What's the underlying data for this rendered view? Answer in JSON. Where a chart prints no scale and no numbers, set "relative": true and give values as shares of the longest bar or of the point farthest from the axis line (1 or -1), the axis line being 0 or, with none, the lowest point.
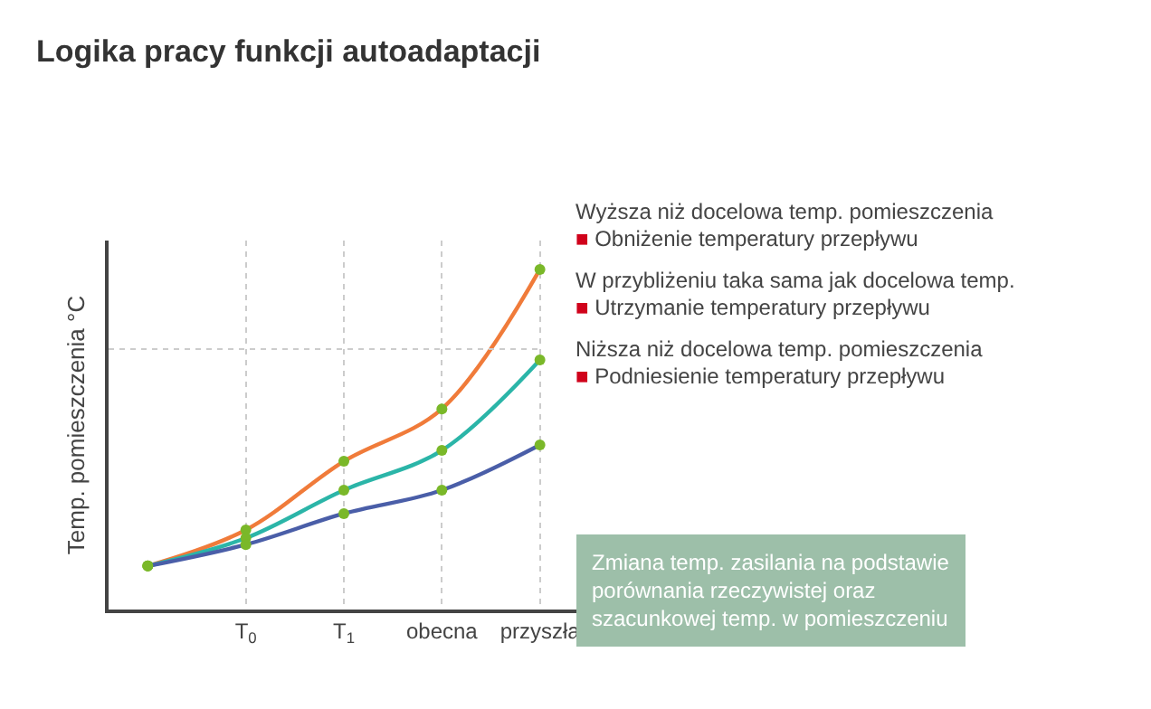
{
  "chart_data": {
    "type": "line",
    "title": "Logika pracy funkcji autoadaptacji",
    "ylabel": "Temp. pomieszczenia °C",
    "relative": true,
    "categories": [
      null,
      "T$_{0}$",
      "T$_{1}$",
      "obecna",
      "przyszła"
    ],
    "series": [
      {
        "color": "#f07b3a",
        "values": [
          0.128,
          0.234,
          0.436,
          0.59,
          1
        ]
      },
      {
        "color": "#2bb5a8",
        "values": [
          0.128,
          0.21,
          0.351,
          0.468,
          0.734
        ]
      },
      {
        "color": "#4a5ea8",
        "values": [
          0.128,
          0.191,
          0.282,
          0.351,
          0.484
        ]
      }
    ],
    "marker": "circle",
    "grid": "x",
    "ref_lines": [
      {
        "axis": "y",
        "value": 0.766,
        "line_style": "dotted",
        "color": "#cccccc"
      }
    ],
    "annotations": [
      "Wyższa niż docelowa temp. pomieszczenia",
      "■ Obniżenie temperatury przepływu",
      "W przybliżeniu taka sama jak docelowa temp.",
      "■ Utrzymanie temperatury przepływu",
      "Niższa niż docelowa temp. pomieszczenia",
      "■ Podniesienie temperatury przepływu",
      "Zmiana temp. zasilania na podstawie\nporównania rzeczywistej oraz\nszacunkowej temp. w pomieszczeniu"
    ]
  }
}
